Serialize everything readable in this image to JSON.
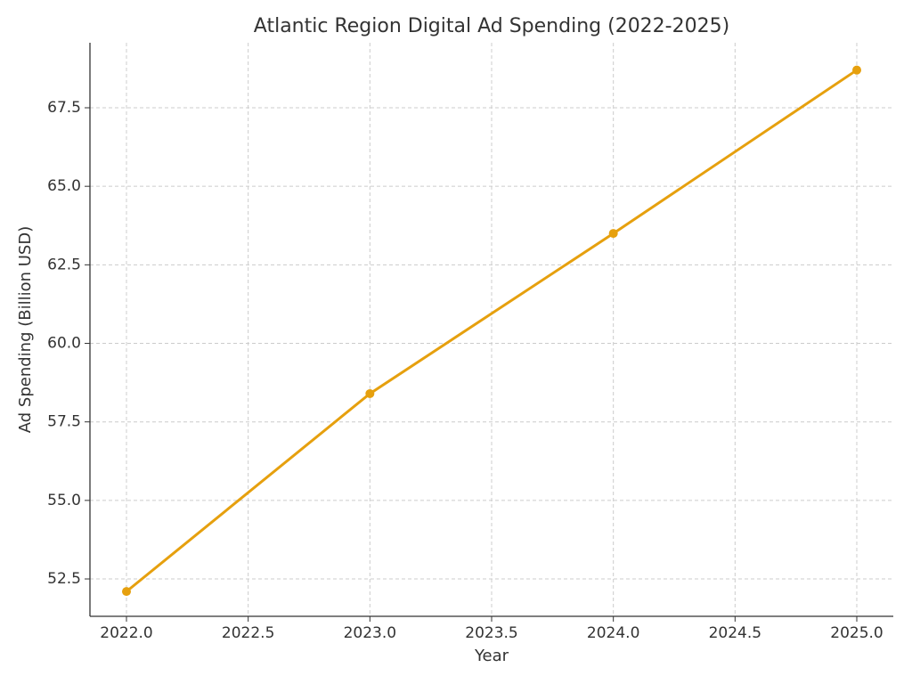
{
  "chart_data": {
    "type": "line",
    "title": "Atlantic Region Digital Ad Spending (2022-2025)",
    "x_label": "Year",
    "y_label": "Ad Spending (Billion USD)",
    "x": [
      2022,
      2023,
      2024,
      2025
    ],
    "values": [
      52.1,
      58.4,
      63.5,
      68.7
    ],
    "color": "#e6a00e",
    "xlim": [
      2021.85,
      2025.15
    ],
    "xticks": [
      {
        "value": 2022,
        "label": "2022.0"
      },
      2022.5,
      {
        "value": 2023,
        "label": "2023.0"
      },
      2023.5,
      {
        "value": 2024,
        "label": "2024.0"
      },
      2024.5,
      {
        "value": 2025,
        "label": "2025.0"
      }
    ],
    "ylim": [
      51.31,
      69.57
    ],
    "yticks": [
      52.5,
      {
        "value": 55,
        "label": "55.0"
      },
      57.5,
      {
        "value": 60,
        "label": "60.0"
      },
      62.5,
      {
        "value": 65,
        "label": "65.0"
      },
      67.5
    ],
    "grid": true
  }
}
